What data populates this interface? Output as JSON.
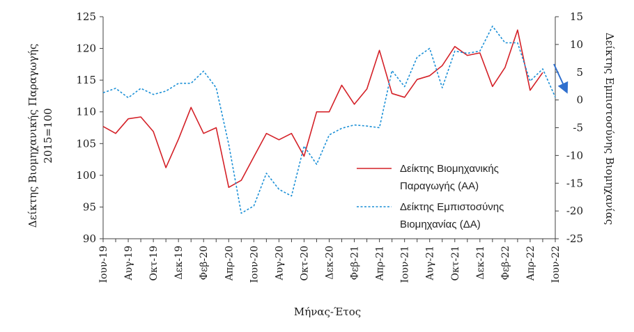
{
  "colors": {
    "ip_line": "#d42027",
    "ci_line": "#1a8fd6",
    "axis": "#404040",
    "arrow": "#2f6fce"
  },
  "chart_data": {
    "type": "line",
    "xlabel": "Μήνας-Έτος",
    "ylabel_left_line1": "Δείκτης Βιομηχανικής Παραγωγής",
    "ylabel_left_line2": "2015=100",
    "ylabel_right": "Δείκτης Εμπιστοσύνης Βιομηχανίας",
    "ylim_left": [
      90,
      125
    ],
    "ylim_right": [
      -25,
      15
    ],
    "yticks_left": [
      90,
      95,
      100,
      105,
      110,
      115,
      120,
      125
    ],
    "yticks_right": [
      -25,
      -20,
      -15,
      -10,
      -5,
      0,
      5,
      10,
      15
    ],
    "x_labels": [
      "Ιουν-19",
      "Αυγ-19",
      "Οκτ-19",
      "Δεκ-19",
      "Φεβ-20",
      "Απρ-20",
      "Ιουν-20",
      "Αυγ-20",
      "Οκτ-20",
      "Δεκ-20",
      "Φεβ-21",
      "Απρ-21",
      "Ιουν-21",
      "Αυγ-21",
      "Οκτ-21",
      "Δεκ-21",
      "Φεβ-22",
      "Απρ-22",
      "Ιουν-22"
    ],
    "months": [
      "Ιουν-19",
      "Ιουλ-19",
      "Αυγ-19",
      "Σεπ-19",
      "Οκτ-19",
      "Νοε-19",
      "Δεκ-19",
      "Ιαν-20",
      "Φεβ-20",
      "Μαρ-20",
      "Απρ-20",
      "Μαϊ-20",
      "Ιουν-20",
      "Ιουλ-20",
      "Αυγ-20",
      "Σεπ-20",
      "Οκτ-20",
      "Νοε-20",
      "Δεκ-20",
      "Ιαν-21",
      "Φεβ-21",
      "Μαρ-21",
      "Απρ-21",
      "Μαϊ-21",
      "Ιουν-21",
      "Ιουλ-21",
      "Αυγ-21",
      "Σεπ-21",
      "Οκτ-21",
      "Νοε-21",
      "Δεκ-21",
      "Ιαν-22",
      "Φεβ-22",
      "Μαρ-22",
      "Απρ-22",
      "Μαϊ-22",
      "Ιουν-22"
    ],
    "legend": {
      "ip_line1": "Δείκτης Βιομηχανικής",
      "ip_line2": "Παραγωγής (ΑΑ)",
      "ci_line1": "Δείκτης Εμπιστοσύνης",
      "ci_line2": "Βιομηχανίας (ΔΑ)"
    },
    "series": [
      {
        "axis": "left",
        "style": "solid",
        "values": [
          107.7,
          106.6,
          108.9,
          109.2,
          106.9,
          101.2,
          105.7,
          110.7,
          106.6,
          107.5,
          98.1,
          99.2,
          102.9,
          106.6,
          105.6,
          106.6,
          103.0,
          110.0,
          110.0,
          114.2,
          111.2,
          113.6,
          119.7,
          112.9,
          112.3,
          115.1,
          115.7,
          117.3,
          120.3,
          118.9,
          119.3,
          114.0,
          117.0,
          122.9,
          113.4,
          116.2,
          null
        ]
      },
      {
        "axis": "right",
        "style": "dashed",
        "values": [
          1.3,
          2.1,
          0.4,
          2.1,
          1.0,
          1.6,
          3.0,
          3.0,
          5.2,
          2.2,
          -8.0,
          -20.4,
          -19.1,
          -13.2,
          -16.1,
          -17.3,
          -8.3,
          -11.6,
          -6.3,
          -5.1,
          -4.5,
          -4.7,
          -5.0,
          5.3,
          2.4,
          7.7,
          9.3,
          2.2,
          8.8,
          8.4,
          8.8,
          13.3,
          10.3,
          10.3,
          3.4,
          5.6,
          0.5
        ]
      }
    ]
  }
}
